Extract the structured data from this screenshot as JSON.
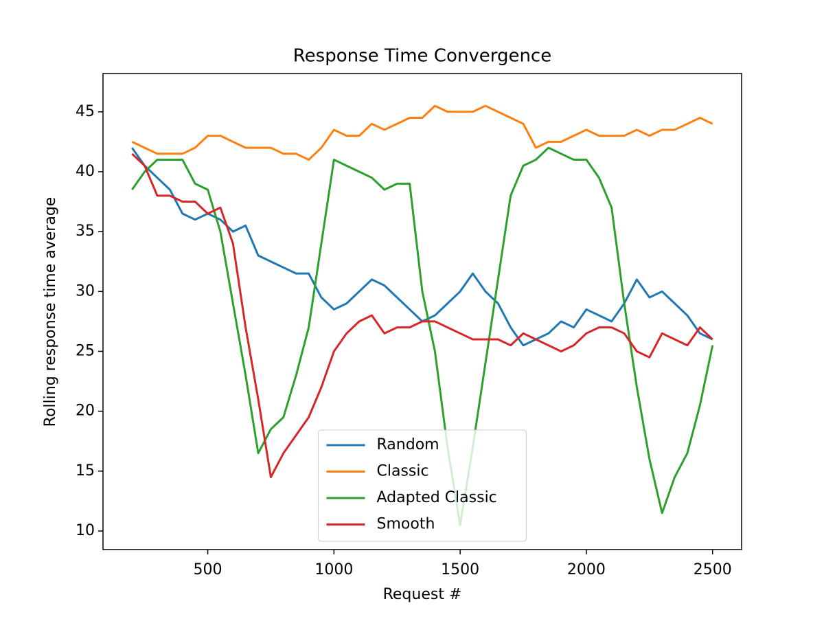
{
  "chart_data": {
    "type": "line",
    "title": "Response Time Convergence",
    "x_label": "Request #",
    "y_label": "Rolling response time average",
    "x": [
      200,
      250,
      300,
      350,
      400,
      450,
      500,
      550,
      600,
      650,
      700,
      750,
      800,
      850,
      900,
      950,
      1000,
      1050,
      1100,
      1150,
      1200,
      1250,
      1300,
      1350,
      1400,
      1450,
      1500,
      1550,
      1600,
      1650,
      1700,
      1750,
      1800,
      1850,
      1900,
      1950,
      2000,
      2050,
      2100,
      2150,
      2200,
      2250,
      2300,
      2350,
      2400,
      2450,
      2500
    ],
    "series": [
      {
        "name": "Random",
        "color": "#1f77b4",
        "values": [
          42,
          40.5,
          39.5,
          38.5,
          36.5,
          36,
          36.5,
          36,
          35,
          35.5,
          33,
          32.5,
          32,
          31.5,
          31.5,
          29.5,
          28.5,
          29,
          30,
          31,
          30.5,
          29.5,
          28.5,
          27.5,
          28,
          29,
          30,
          31.5,
          30,
          29,
          27,
          25.5,
          26,
          26.5,
          27.5,
          27,
          28.5,
          28,
          27.5,
          29,
          31,
          29.5,
          30,
          29,
          28,
          26.5,
          26
        ]
      },
      {
        "name": "Classic",
        "color": "#ff7f0e",
        "values": [
          42.5,
          42,
          41.5,
          41.5,
          41.5,
          42,
          43,
          43,
          42.5,
          42,
          42,
          42,
          41.5,
          41.5,
          41,
          42,
          43.5,
          43,
          43,
          44,
          43.5,
          44,
          44.5,
          44.5,
          45.5,
          45,
          45,
          45,
          45.5,
          45,
          44.5,
          44,
          42,
          42.5,
          42.5,
          43,
          43.5,
          43,
          43,
          43,
          43.5,
          43,
          43.5,
          43.5,
          44,
          44.5,
          44
        ]
      },
      {
        "name": "Adapted Classic",
        "color": "#2ca02c",
        "values": [
          38.5,
          40,
          41,
          41,
          41,
          39,
          38.5,
          35,
          29,
          23,
          16.5,
          18.5,
          19.5,
          23,
          27,
          34,
          41,
          40.5,
          40,
          39.5,
          38.5,
          39,
          39,
          30,
          25,
          17,
          10.5,
          17,
          24,
          31,
          38,
          40.5,
          41,
          42,
          41.5,
          41,
          41,
          39.5,
          37,
          29,
          22,
          16,
          11.5,
          14.5,
          16.5,
          20.5,
          25.5
        ]
      },
      {
        "name": "Smooth",
        "color": "#d62728",
        "values": [
          41.5,
          40.5,
          38,
          38,
          37.5,
          37.5,
          36.5,
          37,
          34,
          27,
          21,
          14.5,
          16.5,
          18,
          19.5,
          22,
          25,
          26.5,
          27.5,
          28,
          26.5,
          27,
          27,
          27.5,
          27.5,
          27,
          26.5,
          26,
          26,
          26,
          25.5,
          26.5,
          26,
          25.5,
          25,
          25.5,
          26.5,
          27,
          27,
          26.5,
          25,
          24.5,
          26.5,
          26,
          25.5,
          27,
          26
        ]
      }
    ],
    "xlim": [
      85,
      2615
    ],
    "ylim": [
      8.45,
      48.2
    ],
    "xticks": [
      500,
      1000,
      1500,
      2000,
      2500
    ],
    "yticks": [
      10,
      15,
      20,
      25,
      30,
      35,
      40,
      45
    ],
    "legend": "lower center"
  }
}
